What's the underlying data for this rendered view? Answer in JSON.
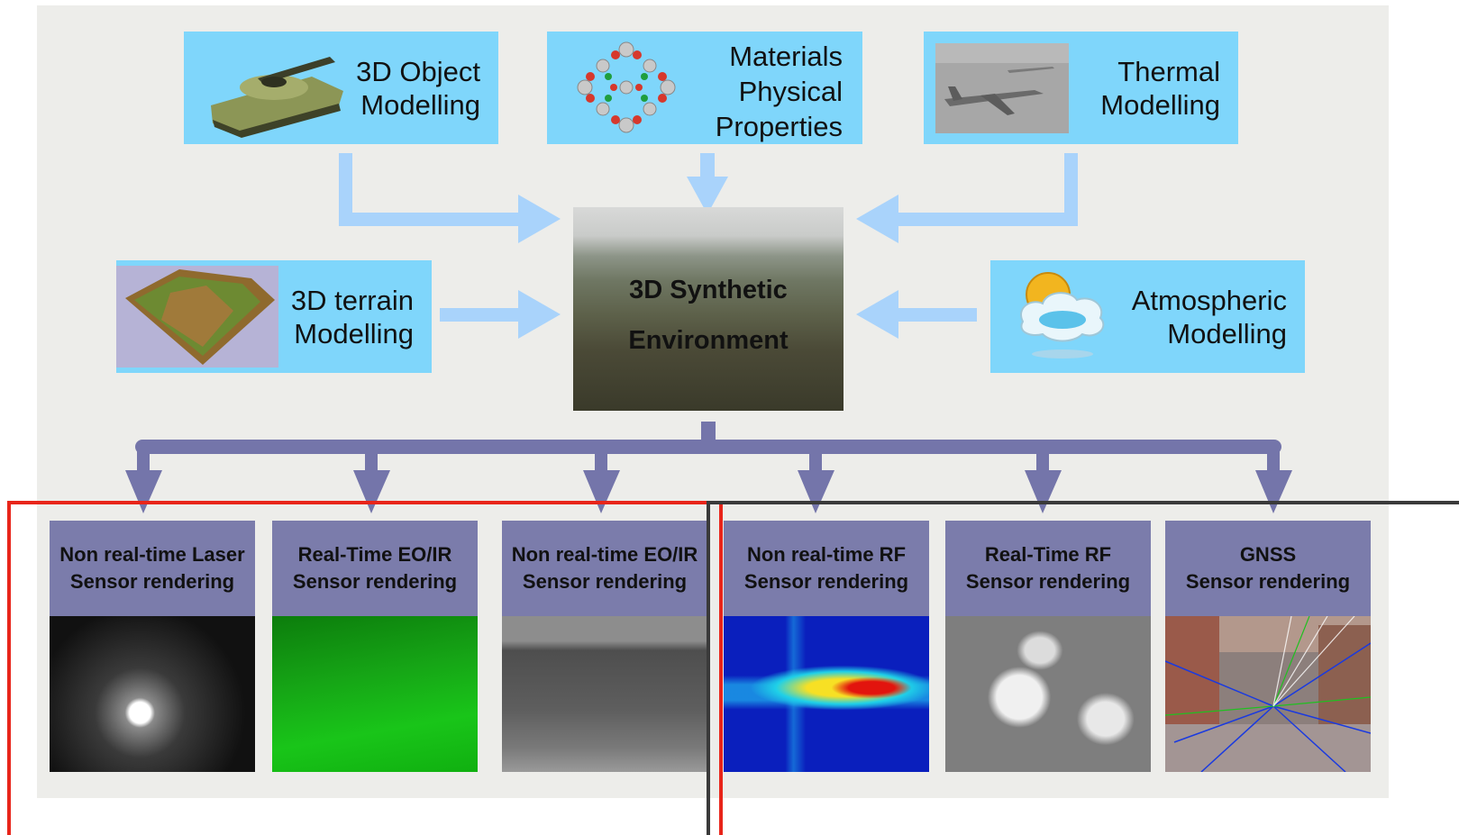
{
  "inputs": {
    "object": {
      "label": "3D Object\nModelling",
      "image": "tank-render"
    },
    "materials": {
      "label": "Materials\nPhysical\nProperties",
      "image": "molecule-structure"
    },
    "thermal": {
      "label": "Thermal\nModelling",
      "image": "aircraft-render"
    },
    "terrain": {
      "label": "3D terrain\nModelling",
      "image": "terrain-render"
    },
    "atmospheric": {
      "label": "Atmospheric\nModelling",
      "image": "sun-cloud-icon"
    }
  },
  "center": {
    "label": "3D Synthetic\nEnvironment",
    "image": "landscape-render"
  },
  "sensors": [
    {
      "label": "Non real-time Laser\nSensor rendering",
      "image": "laser-render"
    },
    {
      "label": "Real-Time EO/IR\nSensor rendering",
      "image": "eoir-green-render"
    },
    {
      "label": "Non real-time EO/IR\nSensor rendering",
      "image": "eoir-gray-render"
    },
    {
      "label": "Non real-time RF\nSensor rendering",
      "image": "rf-heatmap-render"
    },
    {
      "label": "Real-Time RF\nSensor rendering",
      "image": "rf-buildings-render"
    },
    {
      "label": "GNSS\nSensor rendering",
      "image": "gnss-rays-render"
    }
  ],
  "colors": {
    "input_box": "#7fd6fb",
    "input_arrow": "#a9d3fb",
    "sensor_header": "#7b7cab",
    "output_arrow": "#7475aa",
    "group_left_border": "#e8251a",
    "group_right_border": "#3a3a3a",
    "background_panel": "#ededea"
  }
}
